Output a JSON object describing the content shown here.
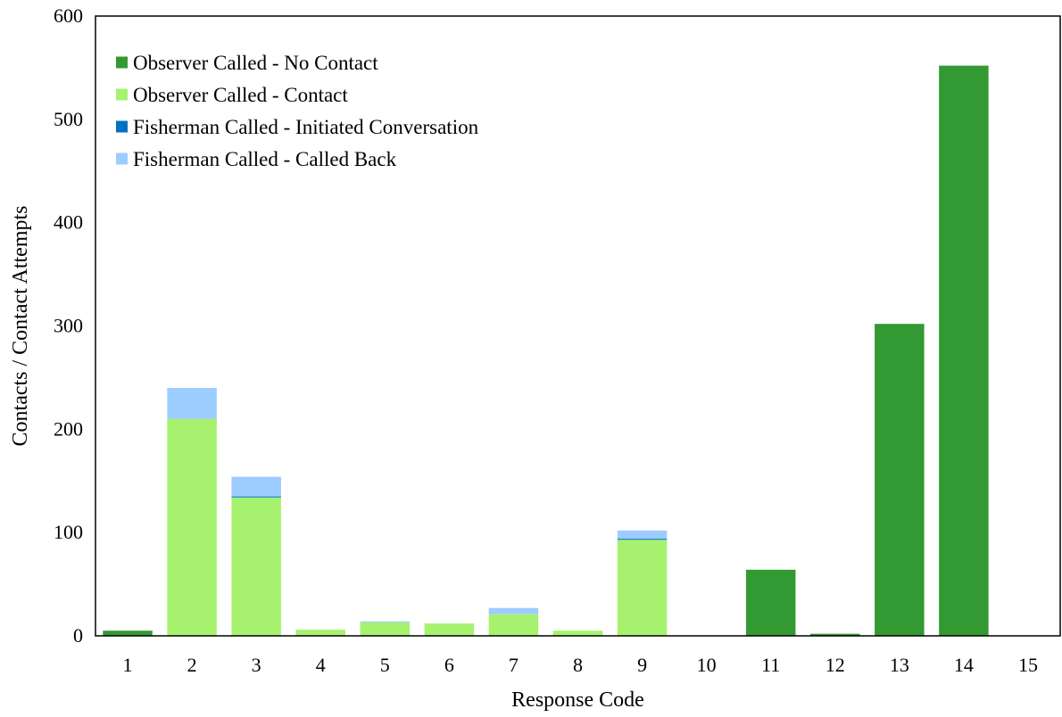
{
  "chart_data": {
    "type": "bar",
    "stacked": true,
    "title": "",
    "xlabel": "Response Code",
    "ylabel": "Contacts / Contact Attempts",
    "categories": [
      "1",
      "2",
      "3",
      "4",
      "5",
      "6",
      "7",
      "8",
      "9",
      "10",
      "11",
      "12",
      "13",
      "14",
      "15"
    ],
    "ylim": [
      0,
      600
    ],
    "yticks": [
      "0",
      "100",
      "200",
      "300",
      "400",
      "500",
      "600"
    ],
    "grid": false,
    "legend_position": "top-left",
    "series": [
      {
        "name": "Observer Called - No Contact",
        "color": "#339933",
        "values": [
          5,
          0,
          0,
          0,
          0,
          0,
          0,
          0,
          0,
          0,
          64,
          2,
          302,
          552,
          0
        ]
      },
      {
        "name": "Observer Called - Contact",
        "color": "#A6F26E",
        "values": [
          0,
          210,
          134,
          6,
          13,
          12,
          21,
          5,
          93,
          0,
          0,
          0,
          0,
          0,
          0
        ]
      },
      {
        "name": "Fisherman Called - Initiated Conversation",
        "color": "#0070C0",
        "values": [
          0,
          0,
          1,
          0,
          0,
          0,
          0,
          0,
          1,
          0,
          0,
          0,
          0,
          0,
          0
        ]
      },
      {
        "name": "Fisherman Called - Called Back",
        "color": "#9DCCFF",
        "values": [
          0,
          30,
          19,
          0,
          1,
          0,
          6,
          0,
          8,
          0,
          0,
          0,
          0,
          0,
          0
        ]
      }
    ]
  }
}
